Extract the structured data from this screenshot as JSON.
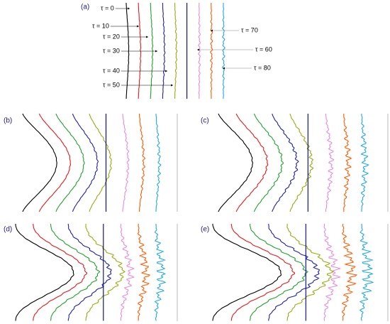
{
  "panels": [
    {
      "label": "(a)"
    },
    {
      "label": "(b)"
    },
    {
      "label": "(c)"
    },
    {
      "label": "(d)"
    },
    {
      "label": "(e)"
    }
  ],
  "tau_labels": [
    "τ = 0",
    "τ = 10",
    "τ = 20",
    "τ = 30",
    "τ = 40",
    "τ = 50",
    "τ = 60",
    "τ = 70",
    "τ = 80"
  ]
}
